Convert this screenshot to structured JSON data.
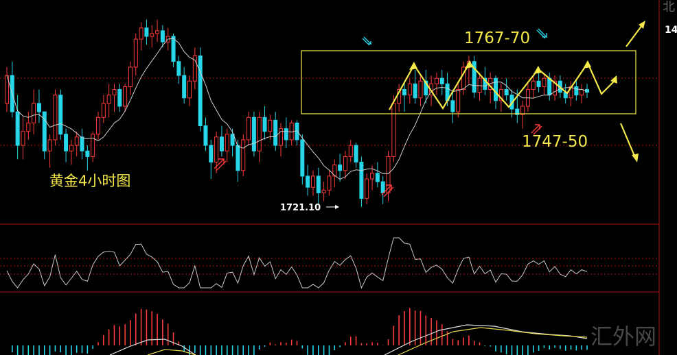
{
  "chart_data": {
    "type": "candlestick",
    "title": "黄金4小时图",
    "annotations": {
      "low_label": "1721.10",
      "resistance_label": "1767-70",
      "support_label": "1747-50"
    },
    "corner_text": [
      "北",
      "14"
    ],
    "watermark": "汇外网",
    "colors": {
      "up": "#ff3b3b",
      "down": "#27d6e8",
      "ma": "#d0d0d0",
      "annotation": "#f5e94a",
      "grid": "#b01010"
    },
    "candles": [
      [
        1755,
        1768,
        1752,
        1765
      ],
      [
        1765,
        1770,
        1750,
        1752
      ],
      [
        1752,
        1758,
        1735,
        1740
      ],
      [
        1740,
        1750,
        1735,
        1745
      ],
      [
        1745,
        1752,
        1742,
        1748
      ],
      [
        1748,
        1760,
        1744,
        1755
      ],
      [
        1755,
        1760,
        1748,
        1752
      ],
      [
        1752,
        1752,
        1735,
        1738
      ],
      [
        1738,
        1744,
        1732,
        1742
      ],
      [
        1742,
        1760,
        1740,
        1758
      ],
      [
        1758,
        1760,
        1742,
        1744
      ],
      [
        1744,
        1746,
        1734,
        1738
      ],
      [
        1738,
        1742,
        1733,
        1740
      ],
      [
        1740,
        1745,
        1736,
        1743
      ],
      [
        1743,
        1746,
        1735,
        1738
      ],
      [
        1738,
        1740,
        1731,
        1736
      ],
      [
        1736,
        1745,
        1734,
        1744
      ],
      [
        1744,
        1752,
        1742,
        1750
      ],
      [
        1750,
        1758,
        1748,
        1755
      ],
      [
        1755,
        1762,
        1750,
        1758
      ],
      [
        1758,
        1762,
        1752,
        1760
      ],
      [
        1760,
        1762,
        1752,
        1754
      ],
      [
        1754,
        1762,
        1752,
        1761
      ],
      [
        1761,
        1770,
        1758,
        1768
      ],
      [
        1768,
        1780,
        1765,
        1778
      ],
      [
        1778,
        1784,
        1774,
        1782
      ],
      [
        1782,
        1785,
        1776,
        1779
      ],
      [
        1779,
        1783,
        1775,
        1780
      ],
      [
        1780,
        1785,
        1777,
        1781
      ],
      [
        1781,
        1783,
        1775,
        1777
      ],
      [
        1777,
        1782,
        1774,
        1779
      ],
      [
        1779,
        1780,
        1768,
        1770
      ],
      [
        1770,
        1772,
        1762,
        1765
      ],
      [
        1765,
        1768,
        1755,
        1757
      ],
      [
        1757,
        1765,
        1754,
        1763
      ],
      [
        1763,
        1775,
        1760,
        1772
      ],
      [
        1772,
        1775,
        1745,
        1747
      ],
      [
        1747,
        1750,
        1738,
        1740
      ],
      [
        1740,
        1742,
        1728,
        1734
      ],
      [
        1734,
        1745,
        1730,
        1743
      ],
      [
        1743,
        1747,
        1736,
        1738
      ],
      [
        1738,
        1746,
        1734,
        1744
      ],
      [
        1744,
        1746,
        1736,
        1740
      ],
      [
        1740,
        1742,
        1727,
        1731
      ],
      [
        1731,
        1744,
        1729,
        1742
      ],
      [
        1742,
        1752,
        1740,
        1750
      ],
      [
        1750,
        1752,
        1736,
        1738
      ],
      [
        1738,
        1752,
        1734,
        1750
      ],
      [
        1750,
        1754,
        1742,
        1745
      ],
      [
        1745,
        1751,
        1742,
        1749
      ],
      [
        1749,
        1752,
        1738,
        1740
      ],
      [
        1740,
        1748,
        1736,
        1746
      ],
      [
        1746,
        1750,
        1739,
        1742
      ],
      [
        1742,
        1749,
        1740,
        1748
      ],
      [
        1748,
        1749,
        1740,
        1742
      ],
      [
        1742,
        1744,
        1726,
        1729
      ],
      [
        1729,
        1733,
        1722,
        1725
      ],
      [
        1725,
        1731,
        1722,
        1729
      ],
      [
        1729,
        1732,
        1719,
        1723
      ],
      [
        1723,
        1727,
        1720,
        1724
      ],
      [
        1724,
        1731,
        1722,
        1729
      ],
      [
        1729,
        1735,
        1725,
        1733
      ],
      [
        1733,
        1737,
        1727,
        1731
      ],
      [
        1731,
        1738,
        1728,
        1736
      ],
      [
        1736,
        1742,
        1734,
        1740
      ],
      [
        1740,
        1741,
        1732,
        1734
      ],
      [
        1734,
        1736,
        1718,
        1721
      ],
      [
        1721,
        1730,
        1719,
        1728
      ],
      [
        1728,
        1733,
        1724,
        1730
      ],
      [
        1730,
        1734,
        1725,
        1727
      ],
      [
        1727,
        1729,
        1719,
        1723
      ],
      [
        1723,
        1738,
        1720,
        1736
      ],
      [
        1736,
        1758,
        1734,
        1755
      ],
      [
        1755,
        1762,
        1752,
        1760
      ],
      [
        1760,
        1763,
        1752,
        1758
      ],
      [
        1758,
        1764,
        1755,
        1762
      ],
      [
        1762,
        1767,
        1755,
        1757
      ],
      [
        1757,
        1765,
        1754,
        1763
      ],
      [
        1763,
        1767,
        1755,
        1758
      ],
      [
        1758,
        1765,
        1754,
        1762
      ],
      [
        1762,
        1766,
        1758,
        1764
      ],
      [
        1764,
        1767,
        1758,
        1762
      ],
      [
        1762,
        1766,
        1754,
        1756
      ],
      [
        1756,
        1760,
        1748,
        1752
      ],
      [
        1752,
        1762,
        1750,
        1760
      ],
      [
        1760,
        1770,
        1758,
        1768
      ],
      [
        1768,
        1772,
        1762,
        1770
      ],
      [
        1770,
        1772,
        1757,
        1759
      ],
      [
        1759,
        1766,
        1756,
        1764
      ],
      [
        1764,
        1768,
        1758,
        1760
      ],
      [
        1760,
        1766,
        1755,
        1764
      ],
      [
        1764,
        1765,
        1753,
        1756
      ],
      [
        1756,
        1762,
        1752,
        1760
      ],
      [
        1760,
        1764,
        1756,
        1758
      ],
      [
        1758,
        1760,
        1750,
        1753
      ],
      [
        1753,
        1760,
        1748,
        1751
      ],
      [
        1751,
        1756,
        1746,
        1754
      ],
      [
        1754,
        1762,
        1752,
        1760
      ],
      [
        1760,
        1765,
        1757,
        1763
      ],
      [
        1763,
        1766,
        1759,
        1761
      ],
      [
        1761,
        1766,
        1758,
        1764
      ],
      [
        1764,
        1766,
        1756,
        1758
      ],
      [
        1758,
        1765,
        1756,
        1763
      ],
      [
        1763,
        1765,
        1757,
        1759
      ],
      [
        1759,
        1762,
        1755,
        1757
      ],
      [
        1757,
        1763,
        1754,
        1761
      ],
      [
        1761,
        1763,
        1756,
        1758
      ],
      [
        1758,
        1762,
        1755,
        1760
      ],
      [
        1760,
        1762,
        1757,
        1759
      ]
    ]
  }
}
